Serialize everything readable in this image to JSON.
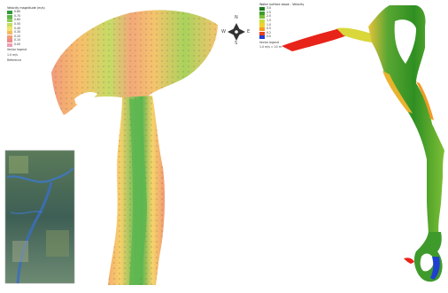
{
  "legend_left": {
    "title": "Velocity magnitude (m/s)",
    "bins": [
      {
        "label": "0.80",
        "color": "#2f9a3a"
      },
      {
        "label": "0.70",
        "color": "#5cb547"
      },
      {
        "label": "0.60",
        "color": "#8bcc58"
      },
      {
        "label": "0.50",
        "color": "#c2de63"
      },
      {
        "label": "0.40",
        "color": "#f2e36a"
      },
      {
        "label": "0.30",
        "color": "#f6b866"
      },
      {
        "label": "0.20",
        "color": "#f39a74"
      },
      {
        "label": "0.10",
        "color": "#ee8a8a"
      },
      {
        "label": "0.00",
        "color": "#e9a0b4"
      }
    ],
    "vector_label": "Vector legend",
    "vector_scale": "1.0 m/s",
    "note": "Reference"
  },
  "legend_right": {
    "title": "Water surface slope - Velocity",
    "bins": [
      {
        "label": "3.0",
        "color": "#1a7a1a"
      },
      {
        "label": "2.5",
        "color": "#3f9a2c"
      },
      {
        "label": "2.0",
        "color": "#7cbf35"
      },
      {
        "label": "1.5",
        "color": "#c9dd3a"
      },
      {
        "label": "1.0",
        "color": "#f1d12c"
      },
      {
        "label": "0.5",
        "color": "#f29a26"
      },
      {
        "label": "0.2",
        "color": "#e8421f"
      },
      {
        "label": "0.0",
        "color": "#1f3fd1"
      }
    ],
    "vector_label": "Vector legend",
    "vector_scale": "1.0 m/s = 10 m"
  },
  "compass": {
    "north": "N",
    "east": "E",
    "south": "S",
    "west": "W"
  },
  "inset_caption": "",
  "colors": {
    "background": "#ffffff",
    "low": "#ef8a7a",
    "mid": "#f6c86a",
    "high": "#3f9a2c",
    "deep": "#1f3fd1",
    "hot": "#e8231a"
  }
}
